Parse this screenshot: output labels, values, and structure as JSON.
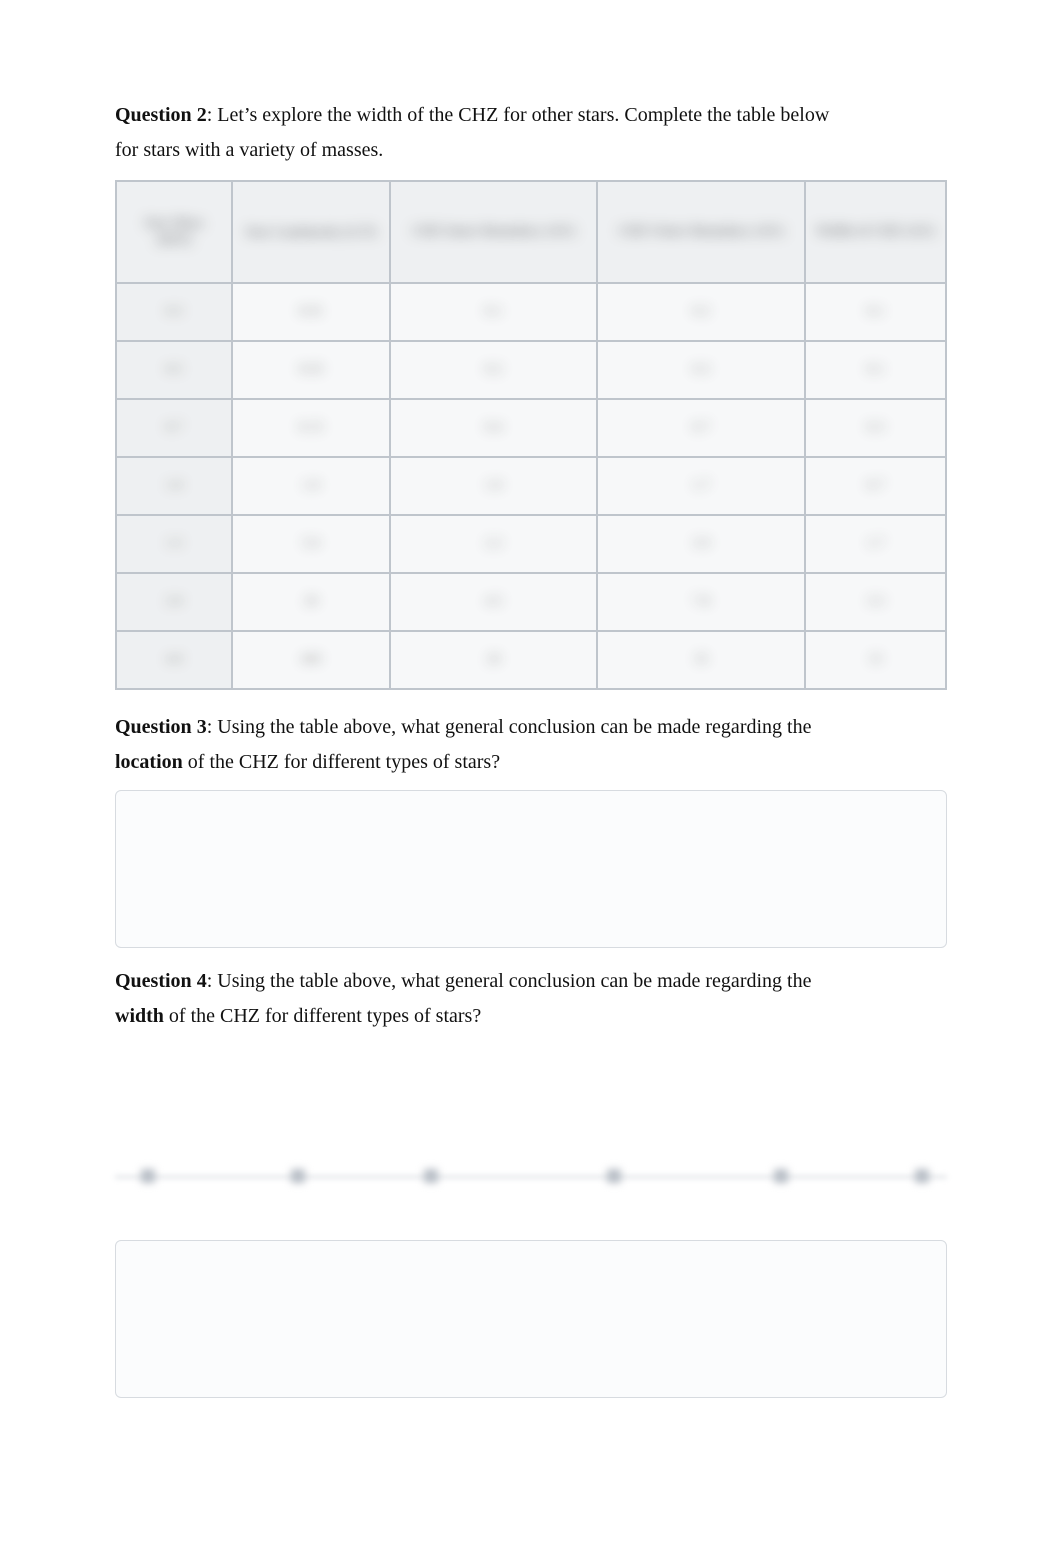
{
  "q2": {
    "label": "Question ",
    "num": "2",
    "tail": ":  Let’s explore the width of the CHZ for other stars. Complete the table below",
    "line2": "for stars with a variety of masses."
  },
  "table": {
    "cols": [
      "Star Mass (M☉)",
      "Star Luminosity (L☉)",
      "CHZ Inner Boundary (AU)",
      "CHZ Outer Boundary (AU)",
      "Width of CHZ (AU)"
    ],
    "col_widths_pct": [
      14,
      19,
      25,
      25,
      17
    ],
    "rows": [
      [
        "0.3",
        "0.01",
        "0.1",
        "0.2",
        "0.1"
      ],
      [
        "0.5",
        "0.03",
        "0.2",
        "0.3",
        "0.1"
      ],
      [
        "0.7",
        "0.15",
        "0.4",
        "0.7",
        "0.3"
      ],
      [
        "1.0",
        "1.0",
        "1.0",
        "1.7",
        "0.7"
      ],
      [
        "1.5",
        "5.0",
        "2.2",
        "3.9",
        "1.7"
      ],
      [
        "2.0",
        "20",
        "4.5",
        "7.8",
        "3.3"
      ],
      [
        "4.0",
        "400",
        "20",
        "35",
        "15"
      ]
    ],
    "header_bg": "#eef0f2",
    "cell_bg": "#f7f8f9",
    "border_color": "#bfc5cc"
  },
  "q3": {
    "label": "Question ",
    "num": "3",
    "tail": ": Using the table above, what general conclusion can be made regarding the",
    "line2_pre": "location",
    "line2_post": " of the CHZ for different types of stars?"
  },
  "q4": {
    "label": "Question ",
    "num": "4",
    "tail": ": Using the table above, what general conclusion can be made regarding the",
    "line2_pre": "width",
    "line2_post": " of the CHZ for different types of stars?"
  },
  "blur_bar": {
    "dot_positions_pct": [
      4,
      22,
      38,
      60,
      80,
      97
    ]
  },
  "colors": {
    "text": "#111111",
    "muted": "#888888",
    "box_border": "#d7dbe0",
    "box_bg": "#fbfcfd"
  }
}
